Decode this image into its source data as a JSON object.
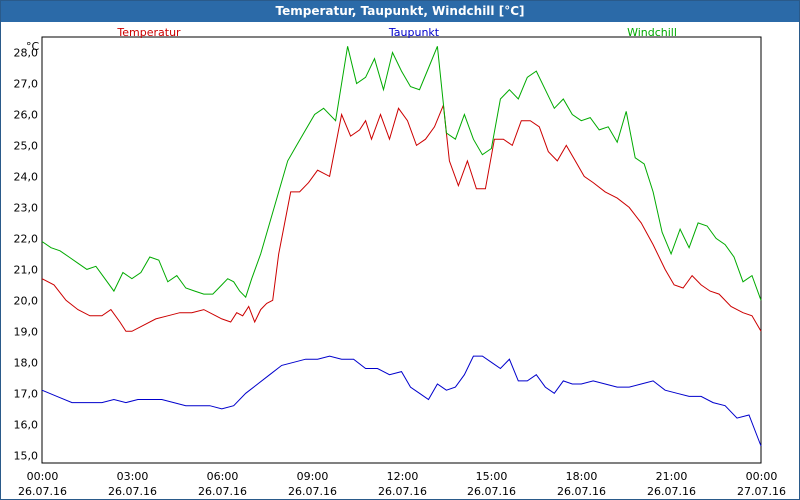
{
  "window": {
    "title": "Temperatur, Taupunkt, Windchill [°C]"
  },
  "chart_data": {
    "type": "line",
    "title": "Temperatur, Taupunkt, Windchill [°C]",
    "ylabel": "°C",
    "xlabel": "",
    "ylim": [
      14.75,
      28.5
    ],
    "xlim": [
      0,
      24
    ],
    "grid": true,
    "legend_placement": "top",
    "y_ticks": [
      "15,0",
      "16,0",
      "17,0",
      "18,0",
      "19,0",
      "20,0",
      "21,0",
      "22,0",
      "23,0",
      "24,0",
      "25,0",
      "26,0",
      "27,0",
      "28,0"
    ],
    "x_ticks": [
      {
        "time": "00:00",
        "date": "26.07.16"
      },
      {
        "time": "03:00",
        "date": "26.07.16"
      },
      {
        "time": "06:00",
        "date": "26.07.16"
      },
      {
        "time": "09:00",
        "date": "26.07.16"
      },
      {
        "time": "12:00",
        "date": "26.07.16"
      },
      {
        "time": "15:00",
        "date": "26.07.16"
      },
      {
        "time": "18:00",
        "date": "26.07.16"
      },
      {
        "time": "21:00",
        "date": "26.07.16"
      },
      {
        "time": "00:00",
        "date": "27.07.16"
      }
    ],
    "series": [
      {
        "name": "Temperatur",
        "color": "#cc0000",
        "x": [
          0,
          0.4,
          0.8,
          1.2,
          1.6,
          2.0,
          2.3,
          2.6,
          2.8,
          3.0,
          3.4,
          3.8,
          4.2,
          4.6,
          5.0,
          5.4,
          5.8,
          6.0,
          6.3,
          6.5,
          6.7,
          6.9,
          7.1,
          7.3,
          7.5,
          7.7,
          7.9,
          8.1,
          8.3,
          8.6,
          8.9,
          9.2,
          9.6,
          10.0,
          10.3,
          10.6,
          10.8,
          11.0,
          11.3,
          11.6,
          11.9,
          12.2,
          12.5,
          12.8,
          13.1,
          13.4,
          13.6,
          13.9,
          14.2,
          14.5,
          14.8,
          15.1,
          15.4,
          15.7,
          16.0,
          16.3,
          16.6,
          16.9,
          17.2,
          17.5,
          17.8,
          18.1,
          18.4,
          18.8,
          19.2,
          19.6,
          20.0,
          20.4,
          20.8,
          21.1,
          21.4,
          21.7,
          22.0,
          22.3,
          22.6,
          23.0,
          23.4,
          23.7,
          24.0
        ],
        "y": [
          20.7,
          20.5,
          20.0,
          19.7,
          19.5,
          19.5,
          19.7,
          19.3,
          19.0,
          19.0,
          19.2,
          19.4,
          19.5,
          19.6,
          19.6,
          19.7,
          19.5,
          19.4,
          19.3,
          19.6,
          19.5,
          19.8,
          19.3,
          19.7,
          19.9,
          20.0,
          21.5,
          22.5,
          23.5,
          23.5,
          23.8,
          24.2,
          24.0,
          26.0,
          25.3,
          25.5,
          25.8,
          25.2,
          26.0,
          25.2,
          26.2,
          25.8,
          25.0,
          25.2,
          25.6,
          26.3,
          24.5,
          23.7,
          24.5,
          23.6,
          23.6,
          25.2,
          25.2,
          25.0,
          25.8,
          25.8,
          25.6,
          24.8,
          24.5,
          25.0,
          24.5,
          24.0,
          23.8,
          23.5,
          23.3,
          23.0,
          22.5,
          21.8,
          21.0,
          20.5,
          20.4,
          20.8,
          20.5,
          20.3,
          20.2,
          19.8,
          19.6,
          19.5,
          19.0
        ]
      },
      {
        "name": "Taupunkt",
        "color": "#0000cc",
        "x": [
          0,
          0.5,
          1.0,
          1.5,
          2.0,
          2.4,
          2.8,
          3.2,
          3.6,
          4.0,
          4.4,
          4.8,
          5.2,
          5.6,
          6.0,
          6.4,
          6.8,
          7.2,
          7.6,
          8.0,
          8.4,
          8.8,
          9.2,
          9.6,
          10.0,
          10.4,
          10.8,
          11.2,
          11.6,
          12.0,
          12.3,
          12.6,
          12.9,
          13.2,
          13.5,
          13.8,
          14.1,
          14.4,
          14.7,
          15.0,
          15.3,
          15.6,
          15.9,
          16.2,
          16.5,
          16.8,
          17.1,
          17.4,
          17.7,
          18.0,
          18.4,
          18.8,
          19.2,
          19.6,
          20.0,
          20.4,
          20.8,
          21.2,
          21.6,
          22.0,
          22.4,
          22.8,
          23.2,
          23.6,
          24.0
        ],
        "y": [
          17.1,
          16.9,
          16.7,
          16.7,
          16.7,
          16.8,
          16.7,
          16.8,
          16.8,
          16.8,
          16.7,
          16.6,
          16.6,
          16.6,
          16.5,
          16.6,
          17.0,
          17.3,
          17.6,
          17.9,
          18.0,
          18.1,
          18.1,
          18.2,
          18.1,
          18.1,
          17.8,
          17.8,
          17.6,
          17.7,
          17.2,
          17.0,
          16.8,
          17.3,
          17.1,
          17.2,
          17.6,
          18.2,
          18.2,
          18.0,
          17.8,
          18.1,
          17.4,
          17.4,
          17.6,
          17.2,
          17.0,
          17.4,
          17.3,
          17.3,
          17.4,
          17.3,
          17.2,
          17.2,
          17.3,
          17.4,
          17.1,
          17.0,
          16.9,
          16.9,
          16.7,
          16.6,
          16.2,
          16.3,
          15.3
        ]
      },
      {
        "name": "Windchill",
        "color": "#00aa00",
        "x": [
          0,
          0.3,
          0.6,
          0.9,
          1.2,
          1.5,
          1.8,
          2.1,
          2.4,
          2.7,
          3.0,
          3.3,
          3.6,
          3.9,
          4.2,
          4.5,
          4.8,
          5.1,
          5.4,
          5.7,
          6.0,
          6.2,
          6.4,
          6.6,
          6.8,
          7.0,
          7.3,
          7.6,
          7.9,
          8.2,
          8.5,
          8.8,
          9.1,
          9.4,
          9.8,
          10.2,
          10.5,
          10.8,
          11.1,
          11.4,
          11.7,
          12.0,
          12.3,
          12.6,
          12.9,
          13.2,
          13.5,
          13.8,
          14.1,
          14.4,
          14.7,
          15.0,
          15.3,
          15.6,
          15.9,
          16.2,
          16.5,
          16.8,
          17.1,
          17.4,
          17.7,
          18.0,
          18.3,
          18.6,
          18.9,
          19.2,
          19.5,
          19.8,
          20.1,
          20.4,
          20.7,
          21.0,
          21.3,
          21.6,
          21.9,
          22.2,
          22.5,
          22.8,
          23.1,
          23.4,
          23.7,
          24.0
        ],
        "y": [
          21.9,
          21.7,
          21.6,
          21.4,
          21.2,
          21.0,
          21.1,
          20.7,
          20.3,
          20.9,
          20.7,
          20.9,
          21.4,
          21.3,
          20.6,
          20.8,
          20.4,
          20.3,
          20.2,
          20.2,
          20.5,
          20.7,
          20.6,
          20.3,
          20.1,
          20.7,
          21.5,
          22.5,
          23.5,
          24.5,
          25.0,
          25.5,
          26.0,
          26.2,
          25.8,
          28.2,
          27.0,
          27.2,
          27.8,
          26.8,
          28.0,
          27.4,
          26.9,
          26.8,
          27.5,
          28.2,
          25.4,
          25.2,
          26.0,
          25.2,
          24.7,
          24.9,
          26.5,
          26.8,
          26.5,
          27.2,
          27.4,
          26.8,
          26.2,
          26.5,
          26.0,
          25.8,
          25.9,
          25.5,
          25.6,
          25.1,
          26.1,
          24.6,
          24.4,
          23.5,
          22.2,
          21.5,
          22.3,
          21.7,
          22.5,
          22.4,
          22.0,
          21.8,
          21.4,
          20.6,
          20.8,
          20.0
        ]
      }
    ]
  }
}
